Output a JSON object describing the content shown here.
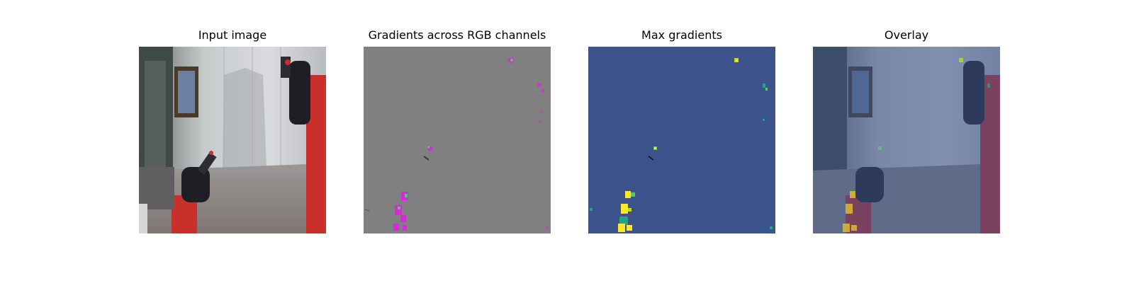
{
  "panels": [
    {
      "title": "Input image"
    },
    {
      "title": "Gradients across RGB channels"
    },
    {
      "title": "Max gradients"
    },
    {
      "title": "Overlay"
    }
  ],
  "colors": {
    "background": "#ffffff",
    "gradients_gray": "#808080",
    "gradients_magenta": "#d62bd6",
    "gradients_green": "#3fd46a",
    "viridis_low": "#3b528b",
    "viridis_mid": "#21a585",
    "viridis_high": "#fde725",
    "robot_red": "#c9302c",
    "robot_black": "#1e1e24"
  }
}
